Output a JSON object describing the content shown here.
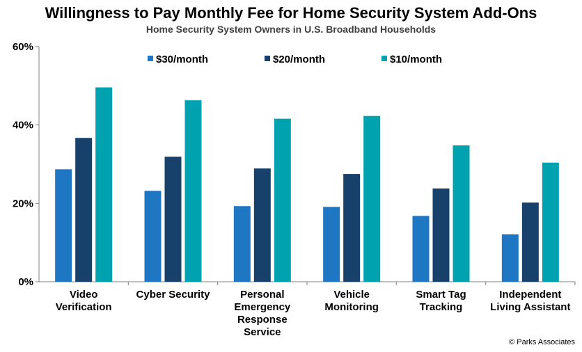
{
  "chart_data": {
    "type": "bar",
    "title": "Willingness to Pay Monthly Fee for Home Security System Add-Ons",
    "subtitle": "Home Security System Owners in U.S. Broadband Households",
    "categories": [
      [
        "Video",
        "Verification"
      ],
      [
        "Cyber Security"
      ],
      [
        "Personal",
        "Emergency",
        "Response",
        "Service"
      ],
      [
        "Vehicle",
        "Monitoring"
      ],
      [
        "Smart Tag",
        "Tracking"
      ],
      [
        "Independent",
        "Living Assistant"
      ]
    ],
    "series": [
      {
        "name": "$30/month",
        "color": "#1f77c3",
        "values": [
          28.7,
          23.2,
          19.3,
          19.1,
          16.8,
          12.1
        ]
      },
      {
        "name": "$20/month",
        "color": "#17406b",
        "values": [
          36.7,
          31.9,
          28.9,
          27.5,
          23.8,
          20.2
        ]
      },
      {
        "name": "$10/month",
        "color": "#00a2b0",
        "values": [
          49.6,
          46.3,
          41.6,
          42.3,
          34.8,
          30.4
        ]
      }
    ],
    "ylim": [
      0,
      60
    ],
    "yticks": [
      0,
      20,
      40,
      60
    ],
    "ytick_labels": [
      "0%",
      "20%",
      "40%",
      "60%"
    ],
    "legend_position": "top-center",
    "grid": false
  },
  "credit": "© Parks Associates"
}
